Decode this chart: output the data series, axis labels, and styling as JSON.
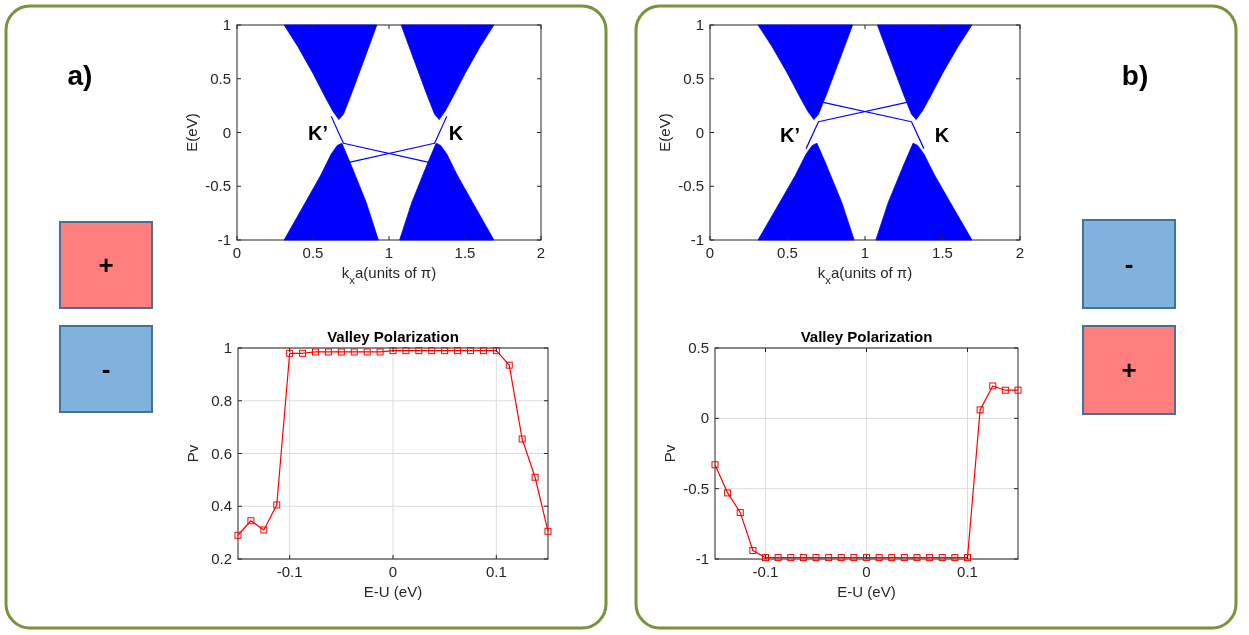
{
  "chart_data": [
    {
      "type": "other",
      "title": "a)",
      "categories": [
        "+",
        "-"
      ],
      "colors": [
        "#ff7f7f",
        "#7fb2dc"
      ]
    },
    {
      "type": "area",
      "xlabel": "k$_{x}$a(units of π)",
      "ylabel": "E(eV)",
      "xlim": [
        0,
        2
      ],
      "ylim": [
        -1,
        1
      ],
      "xticks": [
        0,
        0.5,
        1,
        1.5,
        2
      ],
      "yticks": [
        -1,
        -0.5,
        0,
        0.5,
        1
      ],
      "annotations": [
        "K’",
        "K"
      ],
      "series": [
        {
          "type": "area",
          "color": "#0000ff",
          "x": [
            0.31,
            0.4,
            0.5,
            0.58,
            0.63,
            0.67,
            0.7,
            0.75,
            0.85,
            0.92
          ],
          "values": [
            1,
            0.8,
            0.55,
            0.33,
            0.2,
            0.12,
            0.17,
            0.35,
            0.73,
            1
          ]
        },
        {
          "type": "area",
          "color": "#0000ff",
          "x": [
            1.08,
            1.15,
            1.25,
            1.3,
            1.33,
            1.37,
            1.42,
            1.5,
            1.6,
            1.69
          ],
          "values": [
            1,
            0.73,
            0.35,
            0.17,
            0.12,
            0.2,
            0.33,
            0.55,
            0.8,
            1
          ]
        },
        {
          "type": "area",
          "color": "#0000ff",
          "x": [
            0.31,
            0.45,
            0.55,
            0.62,
            0.66,
            0.69,
            0.75,
            0.85,
            0.93
          ],
          "values": [
            -1,
            -0.65,
            -0.4,
            -0.2,
            -0.12,
            -0.1,
            -0.3,
            -0.65,
            -1
          ]
        },
        {
          "type": "area",
          "color": "#0000ff",
          "x": [
            1.07,
            1.15,
            1.25,
            1.31,
            1.34,
            1.38,
            1.45,
            1.55,
            1.69
          ],
          "values": [
            -1,
            -0.65,
            -0.3,
            -0.1,
            -0.12,
            -0.2,
            -0.4,
            -0.65,
            -1
          ]
        },
        {
          "type": "line",
          "color": "#0000ff",
          "x": [
            0.62,
            0.7,
            1.27
          ],
          "values": [
            0.15,
            -0.1,
            -0.28
          ]
        },
        {
          "type": "line",
          "color": "#0000ff",
          "x": [
            0.73,
            1.3,
            1.38
          ],
          "values": [
            -0.28,
            -0.1,
            0.15
          ]
        }
      ]
    },
    {
      "type": "line",
      "title": "Valley Polarization",
      "xlabel": "E-U (eV)",
      "ylabel": "Pv",
      "xlim": [
        -0.15,
        0.15
      ],
      "ylim": [
        0.2,
        1
      ],
      "xticks": [
        -0.1,
        0,
        0.1
      ],
      "yticks": [
        0.2,
        0.4,
        0.6,
        0.8,
        1
      ],
      "grid": true,
      "marker": "square",
      "series": [
        {
          "color": "#ff0000",
          "x": [
            -0.15,
            -0.1375,
            -0.125,
            -0.1125,
            -0.1,
            -0.0875,
            -0.075,
            -0.0625,
            -0.05,
            -0.0375,
            -0.025,
            -0.0125,
            0,
            0.0125,
            0.025,
            0.0375,
            0.05,
            0.0625,
            0.075,
            0.0875,
            0.1,
            0.1125,
            0.125,
            0.1375,
            0.15
          ],
          "values": [
            0.29,
            0.345,
            0.31,
            0.405,
            0.98,
            0.98,
            0.985,
            0.985,
            0.985,
            0.985,
            0.985,
            0.985,
            0.99,
            0.99,
            0.99,
            0.99,
            0.99,
            0.99,
            0.99,
            0.99,
            0.99,
            0.935,
            0.655,
            0.51,
            0.305
          ]
        }
      ]
    },
    {
      "type": "area",
      "xlabel": "k$_{x}$a(units of π)",
      "ylabel": "E(eV)",
      "xlim": [
        0,
        2
      ],
      "ylim": [
        -1,
        1
      ],
      "xticks": [
        0,
        0.5,
        1,
        1.5,
        2
      ],
      "yticks": [
        -1,
        -0.5,
        0,
        0.5,
        1
      ],
      "annotations": [
        "K’",
        "K"
      ],
      "series": [
        {
          "type": "area",
          "color": "#0000ff",
          "x": [
            0.31,
            0.4,
            0.5,
            0.58,
            0.63,
            0.67,
            0.7,
            0.75,
            0.85,
            0.92
          ],
          "values": [
            1,
            0.8,
            0.55,
            0.33,
            0.2,
            0.12,
            0.17,
            0.35,
            0.73,
            1
          ]
        },
        {
          "type": "area",
          "color": "#0000ff",
          "x": [
            1.08,
            1.15,
            1.25,
            1.3,
            1.33,
            1.37,
            1.42,
            1.5,
            1.6,
            1.69
          ],
          "values": [
            1,
            0.73,
            0.35,
            0.17,
            0.12,
            0.2,
            0.33,
            0.55,
            0.8,
            1
          ]
        },
        {
          "type": "area",
          "color": "#0000ff",
          "x": [
            0.31,
            0.45,
            0.55,
            0.62,
            0.66,
            0.69,
            0.75,
            0.85,
            0.93
          ],
          "values": [
            -1,
            -0.65,
            -0.4,
            -0.2,
            -0.12,
            -0.1,
            -0.3,
            -0.65,
            -1
          ]
        },
        {
          "type": "area",
          "color": "#0000ff",
          "x": [
            1.07,
            1.15,
            1.25,
            1.31,
            1.34,
            1.38,
            1.45,
            1.55,
            1.69
          ],
          "values": [
            -1,
            -0.65,
            -0.3,
            -0.1,
            -0.12,
            -0.2,
            -0.4,
            -0.65,
            -1
          ]
        },
        {
          "type": "line",
          "color": "#0000ff",
          "x": [
            0.62,
            0.7,
            1.27
          ],
          "values": [
            -0.15,
            0.1,
            0.28
          ]
        },
        {
          "type": "line",
          "color": "#0000ff",
          "x": [
            0.73,
            1.3,
            1.38
          ],
          "values": [
            0.28,
            0.1,
            -0.15
          ]
        }
      ]
    },
    {
      "type": "line",
      "title": "Valley Polarization",
      "xlabel": "E-U (eV)",
      "ylabel": "Pv",
      "xlim": [
        -0.15,
        0.15
      ],
      "ylim": [
        -1,
        0.5
      ],
      "xticks": [
        -0.1,
        0,
        0.1
      ],
      "yticks": [
        -1,
        -0.5,
        0,
        0.5
      ],
      "grid": true,
      "marker": "square",
      "series": [
        {
          "color": "#ff0000",
          "x": [
            -0.15,
            -0.1375,
            -0.125,
            -0.1125,
            -0.1,
            -0.0875,
            -0.075,
            -0.0625,
            -0.05,
            -0.0375,
            -0.025,
            -0.0125,
            0,
            0.0125,
            0.025,
            0.0375,
            0.05,
            0.0625,
            0.075,
            0.0875,
            0.1,
            0.1125,
            0.125,
            0.1375,
            0.15
          ],
          "values": [
            -0.33,
            -0.53,
            -0.67,
            -0.94,
            -0.99,
            -0.99,
            -0.99,
            -0.99,
            -0.99,
            -0.99,
            -0.99,
            -0.99,
            -0.99,
            -0.99,
            -0.99,
            -0.99,
            -0.99,
            -0.99,
            -0.99,
            -0.99,
            -0.99,
            0.06,
            0.23,
            0.2,
            0.2
          ]
        }
      ]
    },
    {
      "type": "other",
      "title": "b)",
      "categories": [
        "-",
        "+"
      ],
      "colors": [
        "#7fb2dc",
        "#ff7f7f"
      ]
    }
  ]
}
